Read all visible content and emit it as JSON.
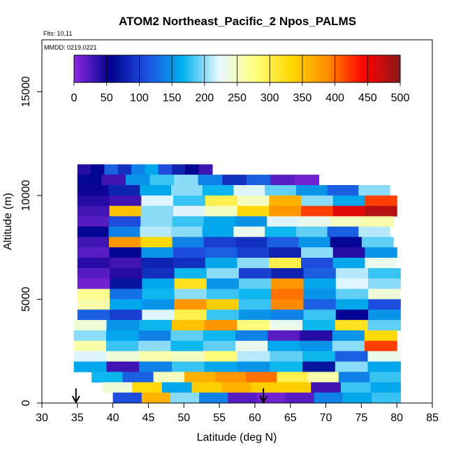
{
  "chart_data": {
    "type": "heatmap",
    "title": "ATOM2 Northeast_Pacific_2 Npos_PALMS",
    "annotations": [
      "Flts: 10,11",
      "MMDD: 0219,0221"
    ],
    "xlabel": "Latitude (deg N)",
    "ylabel": "Altitude (m)",
    "xlim": [
      30,
      85
    ],
    "ylim": [
      0,
      17500
    ],
    "x_ticks": [
      "30",
      "35",
      "40",
      "45",
      "50",
      "55",
      "60",
      "65",
      "70",
      "75",
      "80",
      "85"
    ],
    "y_ticks": [
      "0",
      "5000",
      "10000",
      "15000"
    ],
    "colorbar": {
      "range": [
        0,
        500
      ],
      "tick_labels": [
        "0",
        "50",
        "100",
        "150",
        "200",
        "250",
        "300",
        "350",
        "400",
        "450",
        "500"
      ],
      "colors": [
        "#8a2be2",
        "#00008b",
        "#1f4fe0",
        "#00b2ee",
        "#e8f8ff",
        "#ffff80",
        "#ffd700",
        "#ff8c00",
        "#ff0000",
        "#8b1a1a"
      ]
    },
    "grid": false,
    "profile_markers": [
      {
        "latitude": 34.8,
        "label": "profile"
      },
      {
        "latitude": 61.2,
        "label": "profile"
      }
    ],
    "layers": [
      {
        "alt_min": 11000,
        "alt_max": 11500,
        "lat_min": 35.0,
        "lat_max": 54.0,
        "values": [
          40,
          60,
          120,
          90,
          140,
          160,
          110,
          80,
          60,
          30
        ]
      },
      {
        "alt_min": 10500,
        "alt_max": 11000,
        "lat_min": 35.0,
        "lat_max": 69.0,
        "values": [
          60,
          30,
          150,
          180,
          200,
          140,
          90,
          120,
          20,
          10
        ]
      },
      {
        "alt_min": 10000,
        "alt_max": 10500,
        "lat_min": 35.0,
        "lat_max": 79.0,
        "values": [
          50,
          80,
          160,
          200,
          170,
          220,
          190,
          150,
          120,
          200
        ]
      },
      {
        "alt_min": 9500,
        "alt_max": 10000,
        "lat_min": 35.0,
        "lat_max": 80.0,
        "values": [
          40,
          30,
          220,
          180,
          300,
          250,
          360,
          200,
          160,
          420
        ]
      },
      {
        "alt_min": 9000,
        "alt_max": 9500,
        "lat_min": 35.0,
        "lat_max": 80.0,
        "values": [
          30,
          350,
          200,
          220,
          250,
          330,
          380,
          420,
          460,
          480
        ]
      },
      {
        "alt_min": 8500,
        "alt_max": 9000,
        "lat_min": 35.0,
        "lat_max": 79.5,
        "values": [
          20,
          110,
          200,
          180,
          160,
          150,
          220,
          230,
          250,
          260
        ]
      },
      {
        "alt_min": 8000,
        "alt_max": 8500,
        "lat_min": 35.0,
        "lat_max": 79.0,
        "values": [
          60,
          140,
          210,
          200,
          160,
          230,
          170,
          190,
          120,
          210
        ]
      },
      {
        "alt_min": 7500,
        "alt_max": 8000,
        "lat_min": 35.0,
        "lat_max": 79.5,
        "values": [
          30,
          380,
          330,
          140,
          100,
          90,
          120,
          150,
          60,
          190
        ]
      },
      {
        "alt_min": 7000,
        "alt_max": 7500,
        "lat_min": 35.0,
        "lat_max": 80.0,
        "values": [
          20,
          60,
          150,
          110,
          120,
          100,
          80,
          200,
          40,
          150
        ]
      },
      {
        "alt_min": 6500,
        "alt_max": 7000,
        "lat_min": 35.0,
        "lat_max": 80.0,
        "values": [
          40,
          30,
          80,
          90,
          160,
          200,
          300,
          110,
          160,
          230
        ]
      },
      {
        "alt_min": 6000,
        "alt_max": 6500,
        "lat_min": 35.0,
        "lat_max": 80.5,
        "values": [
          20,
          40,
          90,
          170,
          200,
          100,
          80,
          120,
          210,
          180
        ]
      },
      {
        "alt_min": 5500,
        "alt_max": 6000,
        "lat_min": 35.0,
        "lat_max": 80.5,
        "values": [
          10,
          70,
          160,
          320,
          150,
          190,
          380,
          160,
          220,
          200
        ]
      },
      {
        "alt_min": 5000,
        "alt_max": 5500,
        "lat_min": 35.0,
        "lat_max": 80.5,
        "values": [
          270,
          130,
          170,
          200,
          180,
          170,
          400,
          150,
          190,
          240
        ]
      },
      {
        "alt_min": 4500,
        "alt_max": 5000,
        "lat_min": 35.0,
        "lat_max": 80.5,
        "values": [
          260,
          160,
          150,
          380,
          340,
          180,
          390,
          120,
          160,
          110
        ]
      },
      {
        "alt_min": 4000,
        "alt_max": 4500,
        "lat_min": 35.0,
        "lat_max": 80.5,
        "values": [
          120,
          100,
          220,
          300,
          180,
          150,
          140,
          180,
          60,
          150
        ]
      },
      {
        "alt_min": 3500,
        "alt_max": 4000,
        "lat_min": 34.5,
        "lat_max": 80.5,
        "values": [
          240,
          150,
          170,
          350,
          380,
          280,
          230,
          170,
          320,
          190
        ]
      },
      {
        "alt_min": 3000,
        "alt_max": 3500,
        "lat_min": 34.5,
        "lat_max": 80.0,
        "values": [
          200,
          160,
          140,
          190,
          170,
          140,
          20,
          40,
          150,
          330
        ]
      },
      {
        "alt_min": 2500,
        "alt_max": 3000,
        "lat_min": 34.5,
        "lat_max": 80.0,
        "values": [
          260,
          180,
          200,
          170,
          190,
          230,
          160,
          150,
          200,
          420
        ]
      },
      {
        "alt_min": 2000,
        "alt_max": 2500,
        "lat_min": 34.5,
        "lat_max": 80.5,
        "values": [
          220,
          240,
          260,
          250,
          280,
          210,
          190,
          170,
          120,
          230
        ]
      },
      {
        "alt_min": 1500,
        "alt_max": 2000,
        "lat_min": 34.5,
        "lat_max": 80.5,
        "values": [
          160,
          30,
          140,
          180,
          160,
          150,
          170,
          70,
          200,
          160
        ]
      },
      {
        "alt_min": 1000,
        "alt_max": 1500,
        "lat_min": 37.0,
        "lat_max": 80.5,
        "values": [
          170,
          120,
          250,
          360,
          380,
          400,
          300,
          260,
          140,
          180
        ]
      },
      {
        "alt_min": 500,
        "alt_max": 1000,
        "lat_min": 38.5,
        "lat_max": 80.5,
        "values": [
          240,
          330,
          160,
          340,
          360,
          340,
          340,
          30,
          180,
          160
        ]
      },
      {
        "alt_min": 0,
        "alt_max": 500,
        "lat_min": 40.0,
        "lat_max": 80.5,
        "values": [
          110,
          360,
          200,
          140,
          20,
          10,
          20,
          140,
          160,
          180
        ]
      }
    ]
  }
}
